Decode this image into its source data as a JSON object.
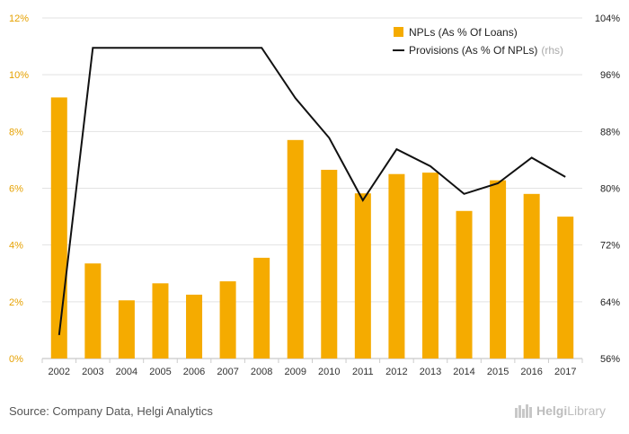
{
  "chart_data": {
    "type": "bar",
    "categories": [
      "2002",
      "2003",
      "2004",
      "2005",
      "2006",
      "2007",
      "2008",
      "2009",
      "2010",
      "2011",
      "2012",
      "2013",
      "2014",
      "2015",
      "2016",
      "2017"
    ],
    "series": [
      {
        "name": "NPLs (As % Of Loans)",
        "type": "bar",
        "axis": "left",
        "values": [
          9.2,
          3.35,
          2.05,
          2.65,
          2.25,
          2.72,
          3.55,
          7.7,
          6.65,
          5.82,
          6.5,
          6.55,
          5.2,
          6.28,
          5.8,
          5.0
        ]
      },
      {
        "name": "Provisions (As % Of NPLs)",
        "name_note": "(rhs)",
        "type": "line",
        "axis": "right",
        "values": [
          59.3,
          99.8,
          99.8,
          99.8,
          99.8,
          99.8,
          99.8,
          92.7,
          87.1,
          78.3,
          85.5,
          83.1,
          79.2,
          80.7,
          84.3,
          81.6
        ]
      }
    ],
    "y_left": {
      "ylim": [
        0,
        12
      ],
      "ticks": [
        "0%",
        "2%",
        "4%",
        "6%",
        "8%",
        "10%",
        "12%"
      ]
    },
    "y_right": {
      "ylim": [
        56,
        104
      ],
      "ticks": [
        "56%",
        "64%",
        "72%",
        "80%",
        "88%",
        "96%",
        "104%"
      ]
    },
    "grid": true,
    "legend": "top-right",
    "colors": {
      "bars": "#f5ab00",
      "line": "#111111",
      "left_ticks": "#e6a100",
      "grid": "#e2e2e2"
    }
  },
  "footer": {
    "source": "Source: Company Data, Helgi Analytics",
    "logo_bold": "Helgi",
    "logo_light": "Library"
  }
}
